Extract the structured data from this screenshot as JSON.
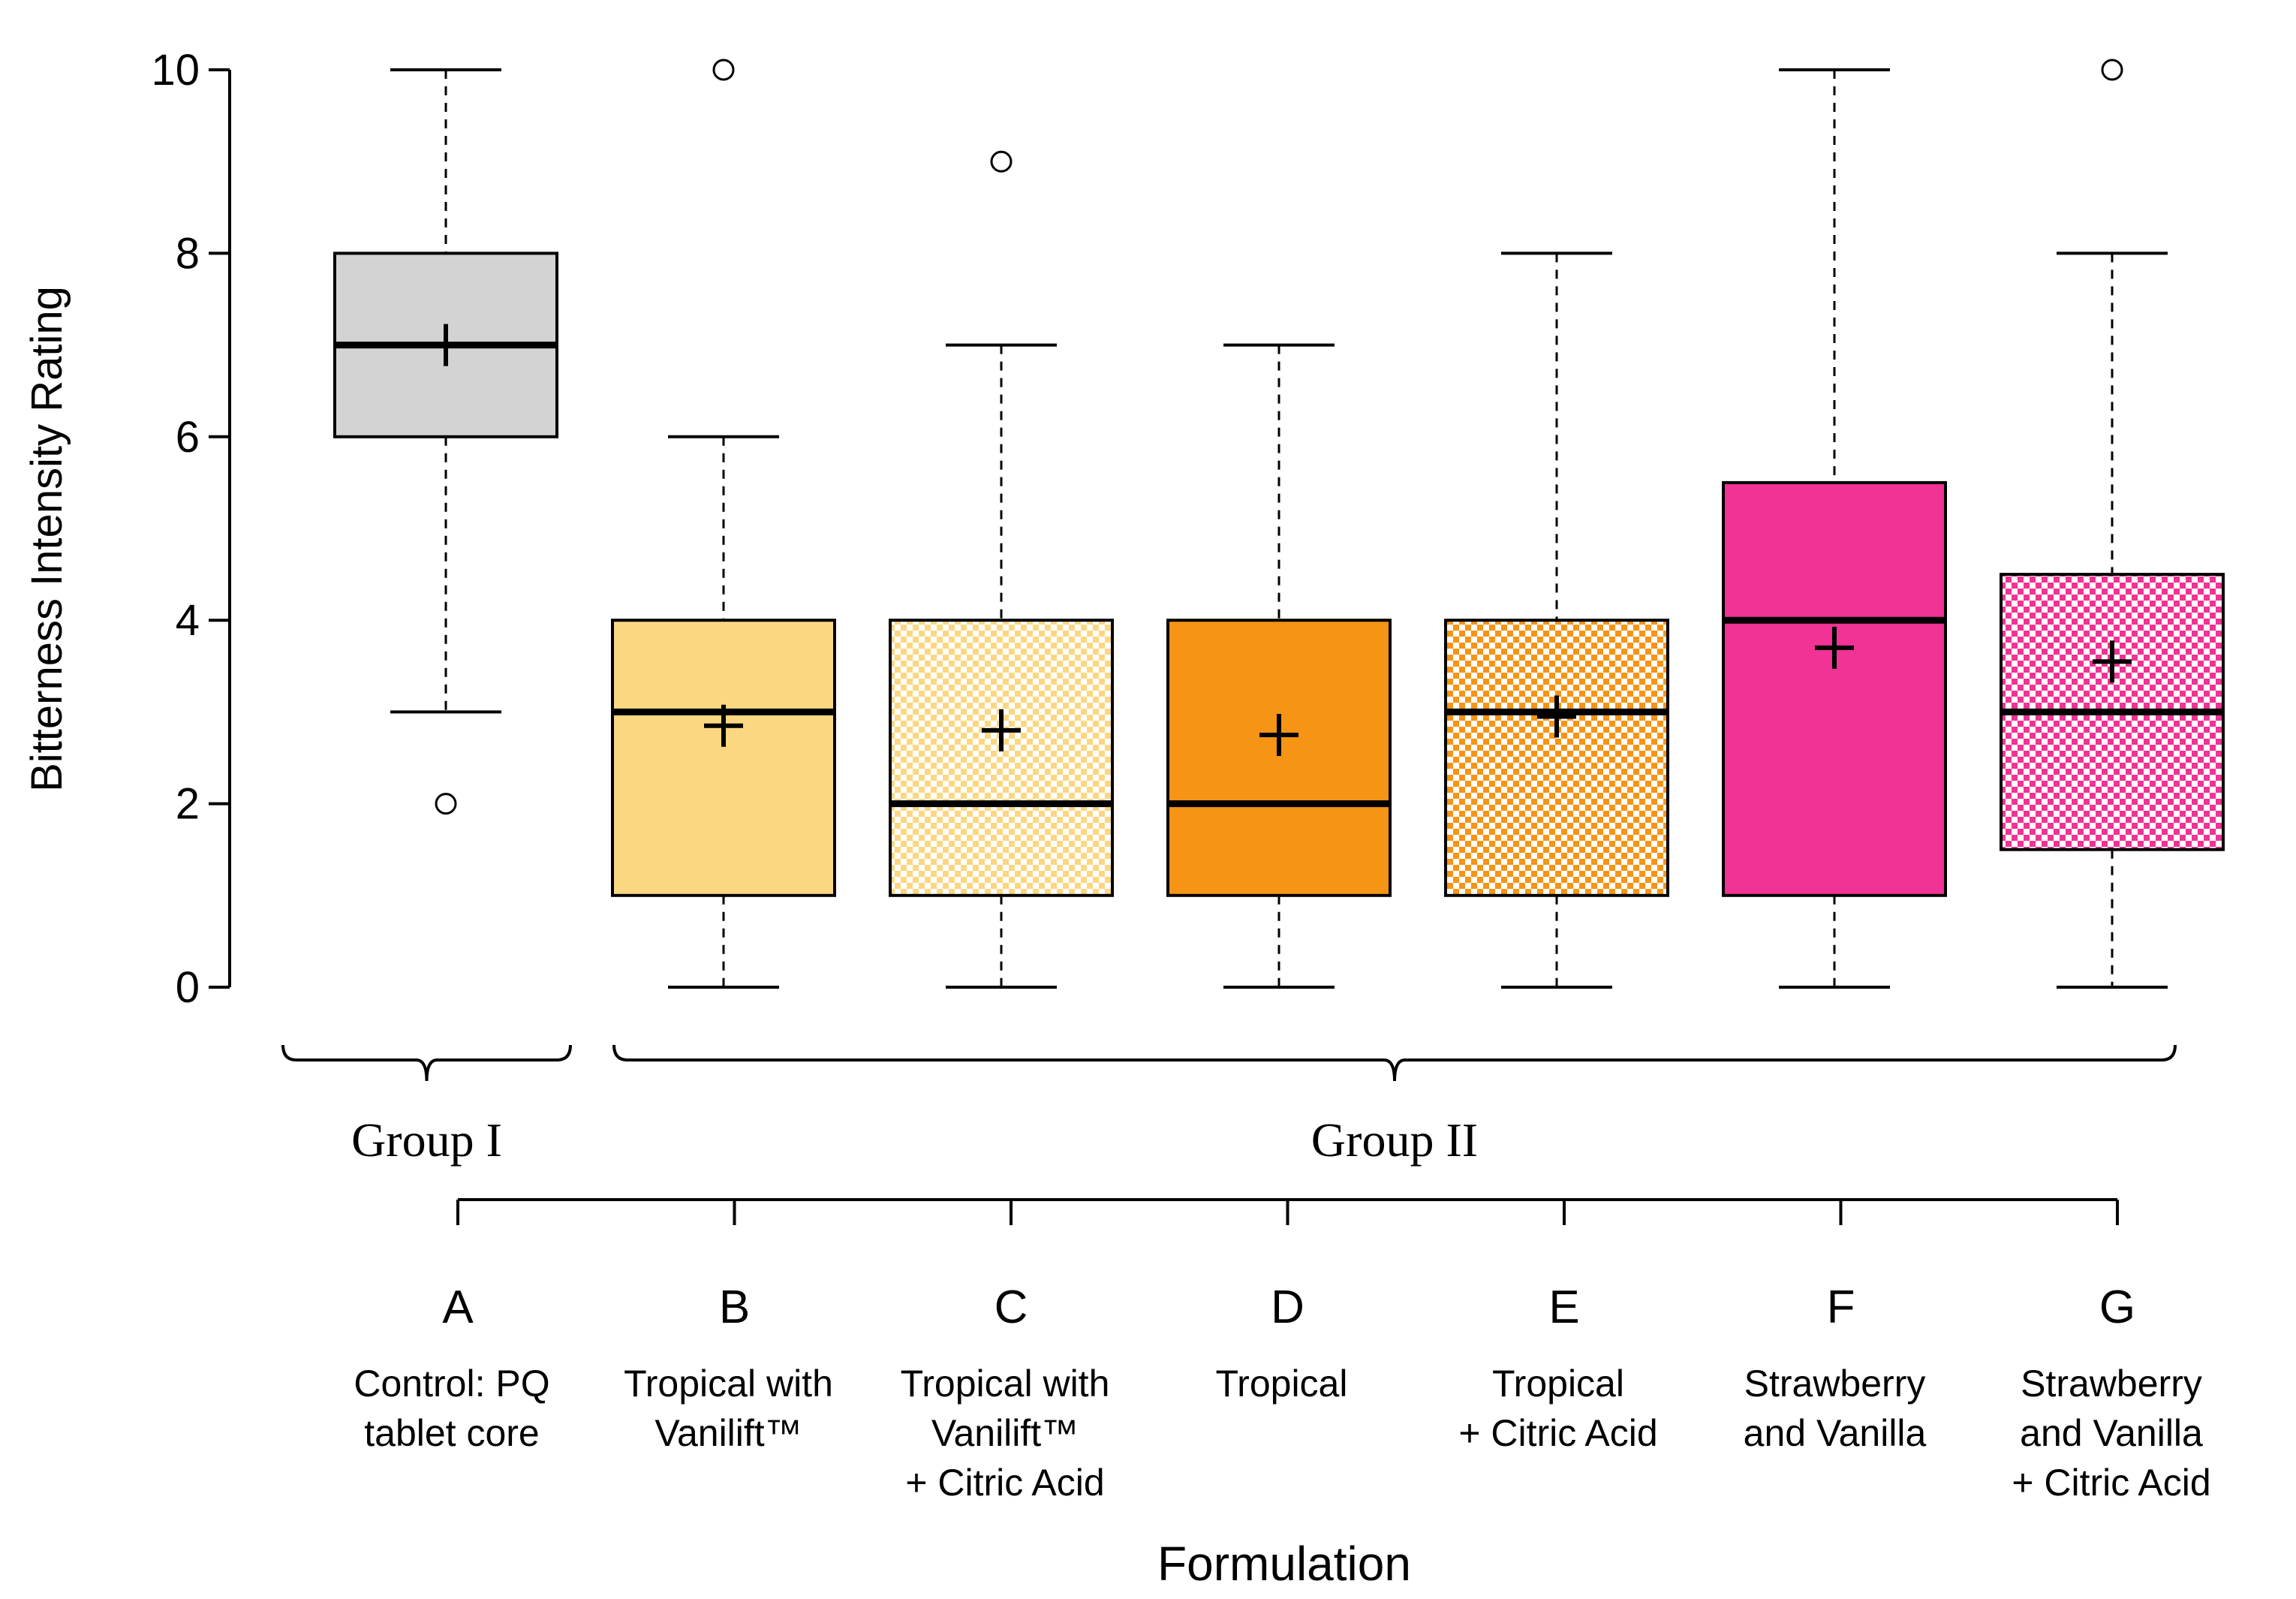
{
  "chart_data": {
    "type": "boxplot",
    "title": "",
    "xlabel": "Formulation",
    "ylabel": "Bitterness Intensity Rating",
    "ylim": [
      0,
      10
    ],
    "yticks": [
      0,
      2,
      4,
      6,
      8,
      10
    ],
    "grid": false,
    "colors": {
      "fill_A": "#d3d3d3",
      "fill_B": "#fbd782",
      "fill_D": "#f69416",
      "fill_F": "#f03394",
      "pattern_bg": "#ffffff",
      "line": "#000000"
    },
    "groups": [
      {
        "label": "Group I",
        "members": [
          "A"
        ]
      },
      {
        "label": "Group II",
        "members": [
          "B",
          "C",
          "D",
          "E",
          "F",
          "G"
        ]
      }
    ],
    "series": [
      {
        "letter": "A",
        "name": [
          "Control: PQ",
          "tablet core"
        ],
        "fill": "fill_A",
        "pattern": false,
        "whisker_low": 3,
        "q1": 6,
        "median": 7,
        "q3": 8,
        "whisker_high": 10,
        "mean": 7.0,
        "outliers": [
          2
        ]
      },
      {
        "letter": "B",
        "name": [
          "Tropical with",
          "Vanilift™"
        ],
        "fill": "fill_B",
        "pattern": false,
        "whisker_low": 0,
        "q1": 1,
        "median": 3,
        "q3": 4,
        "whisker_high": 6,
        "mean": 2.85,
        "outliers": [
          10
        ]
      },
      {
        "letter": "C",
        "name": [
          "Tropical with",
          "Vanilift™",
          "+ Citric Acid"
        ],
        "fill": "fill_B",
        "pattern": true,
        "whisker_low": 0,
        "q1": 1,
        "median": 2,
        "q3": 4,
        "whisker_high": 7,
        "mean": 2.8,
        "outliers": [
          9
        ]
      },
      {
        "letter": "D",
        "name": [
          "Tropical"
        ],
        "fill": "fill_D",
        "pattern": false,
        "whisker_low": 0,
        "q1": 1,
        "median": 2,
        "q3": 4,
        "whisker_high": 7,
        "mean": 2.75,
        "outliers": []
      },
      {
        "letter": "E",
        "name": [
          "Tropical",
          "+ Citric Acid"
        ],
        "fill": "fill_D",
        "pattern": true,
        "whisker_low": 0,
        "q1": 1,
        "median": 3,
        "q3": 4,
        "whisker_high": 8,
        "mean": 2.95,
        "outliers": []
      },
      {
        "letter": "F",
        "name": [
          "Strawberry",
          "and Vanilla"
        ],
        "fill": "fill_F",
        "pattern": false,
        "whisker_low": 0,
        "q1": 1,
        "median": 4,
        "q3": 5.5,
        "whisker_high": 10,
        "mean": 3.7,
        "outliers": []
      },
      {
        "letter": "G",
        "name": [
          "Strawberry",
          "and Vanilla",
          "+ Citric Acid"
        ],
        "fill": "fill_F",
        "pattern": true,
        "whisker_low": 0,
        "q1": 1.5,
        "median": 3,
        "q3": 4.5,
        "whisker_high": 8,
        "mean": 3.55,
        "outliers": [
          10
        ]
      }
    ]
  }
}
